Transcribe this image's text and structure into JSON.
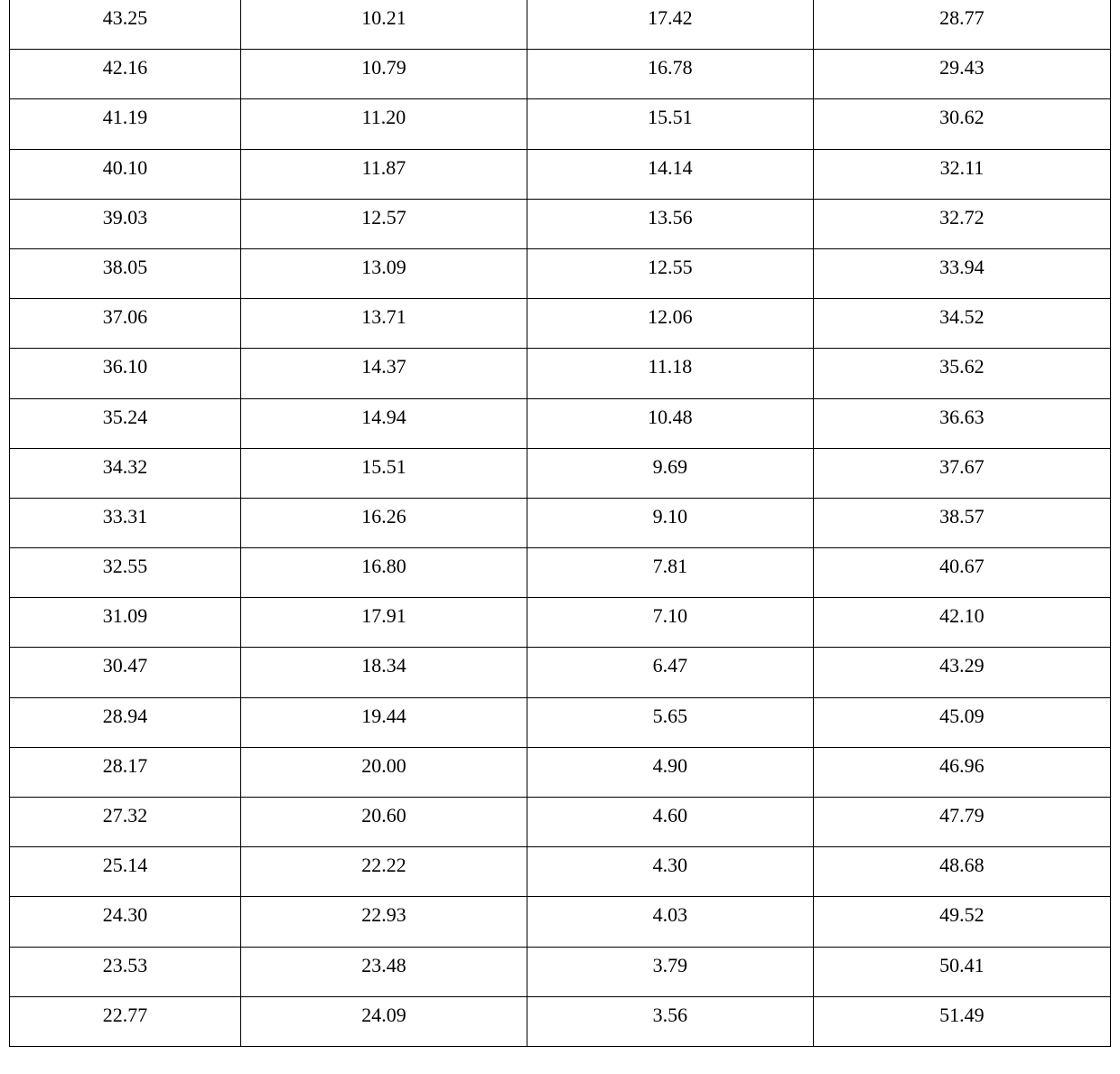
{
  "table": {
    "type": "table",
    "background_color": "#ffffff",
    "border_color": "#000000",
    "text_color": "#000000",
    "font_family": "Times New Roman",
    "font_size_pt": 16,
    "column_count": 4,
    "column_widths_percent": [
      21,
      26,
      26,
      27
    ],
    "cell_align": "center",
    "rows": [
      [
        "43.25",
        "10.21",
        "17.42",
        "28.77"
      ],
      [
        "42.16",
        "10.79",
        "16.78",
        "29.43"
      ],
      [
        "41.19",
        "11.20",
        "15.51",
        "30.62"
      ],
      [
        "40.10",
        "11.87",
        "14.14",
        "32.11"
      ],
      [
        "39.03",
        "12.57",
        "13.56",
        "32.72"
      ],
      [
        "38.05",
        "13.09",
        "12.55",
        "33.94"
      ],
      [
        "37.06",
        "13.71",
        "12.06",
        "34.52"
      ],
      [
        "36.10",
        "14.37",
        "11.18",
        "35.62"
      ],
      [
        "35.24",
        "14.94",
        "10.48",
        "36.63"
      ],
      [
        "34.32",
        "15.51",
        "9.69",
        "37.67"
      ],
      [
        "33.31",
        "16.26",
        "9.10",
        "38.57"
      ],
      [
        "32.55",
        "16.80",
        "7.81",
        "40.67"
      ],
      [
        "31.09",
        "17.91",
        "7.10",
        "42.10"
      ],
      [
        "30.47",
        "18.34",
        "6.47",
        "43.29"
      ],
      [
        "28.94",
        "19.44",
        "5.65",
        "45.09"
      ],
      [
        "28.17",
        "20.00",
        "4.90",
        "46.96"
      ],
      [
        "27.32",
        "20.60",
        "4.60",
        "47.79"
      ],
      [
        "25.14",
        "22.22",
        "4.30",
        "48.68"
      ],
      [
        "24.30",
        "22.93",
        "4.03",
        "49.52"
      ],
      [
        "23.53",
        "23.48",
        "3.79",
        "50.41"
      ],
      [
        "22.77",
        "24.09",
        "3.56",
        "51.49"
      ]
    ]
  }
}
